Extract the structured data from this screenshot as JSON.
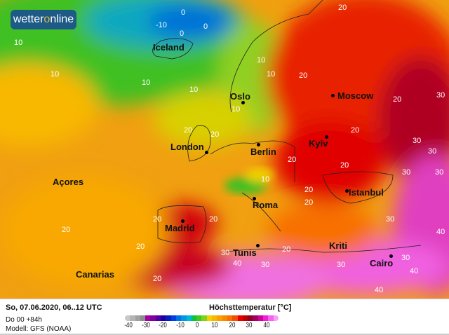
{
  "brand": {
    "logo_prefix": "wetter",
    "logo_o": "o",
    "logo_suffix": "nline"
  },
  "cities": [
    {
      "name": "Iceland",
      "dot": false
    },
    {
      "name": "Oslo",
      "dot": true
    },
    {
      "name": "Moscow",
      "dot": true
    },
    {
      "name": "London",
      "dot": true
    },
    {
      "name": "Berlin",
      "dot": true
    },
    {
      "name": "Kyiv",
      "dot": true
    },
    {
      "name": "Açores",
      "dot": false
    },
    {
      "name": "Istanbul",
      "dot": true
    },
    {
      "name": "Roma",
      "dot": true
    },
    {
      "name": "Madrid",
      "dot": true
    },
    {
      "name": "Tunis",
      "dot": true
    },
    {
      "name": "Kriti",
      "dot": false
    },
    {
      "name": "Cairo",
      "dot": true
    },
    {
      "name": "Canarias",
      "dot": false
    }
  ],
  "isotherm_labels": [
    "0",
    "-10",
    "0",
    "0",
    "10",
    "10",
    "10",
    "10",
    "10",
    "10",
    "10",
    "20",
    "20",
    "20",
    "20",
    "20",
    "20",
    "20",
    "20",
    "20",
    "20",
    "20",
    "20",
    "30",
    "30",
    "30",
    "30",
    "30",
    "30",
    "30",
    "30",
    "30",
    "40",
    "40",
    "40",
    "40",
    "20",
    "30",
    "20",
    "20",
    "10",
    "20"
  ],
  "footer": {
    "date": "So, 07.06.2020, 06..12 UTC",
    "run": "Do 00 +84h",
    "model": "Modell: GFS (NOAA)",
    "legend_title": "Höchsttemperatur [°C]",
    "ticks": [
      "-40",
      "-30",
      "-20",
      "-10",
      "0",
      "10",
      "20",
      "30",
      "40"
    ],
    "scale_colors": [
      "#c8c8c8",
      "#b4b4b4",
      "#a0a0a0",
      "#8c8c8c",
      "#a000a0",
      "#8000a0",
      "#5000a0",
      "#2000a0",
      "#0020c0",
      "#0040e0",
      "#0070e8",
      "#0098e0",
      "#00b8d8",
      "#10c040",
      "#40c820",
      "#80d020",
      "#f0d000",
      "#f8b800",
      "#f8a000",
      "#f88800",
      "#f87000",
      "#f05000",
      "#e80000",
      "#c00000",
      "#900020",
      "#a00060",
      "#d000a0",
      "#f020d0",
      "#f860f0",
      "#f8a0f8"
    ]
  }
}
